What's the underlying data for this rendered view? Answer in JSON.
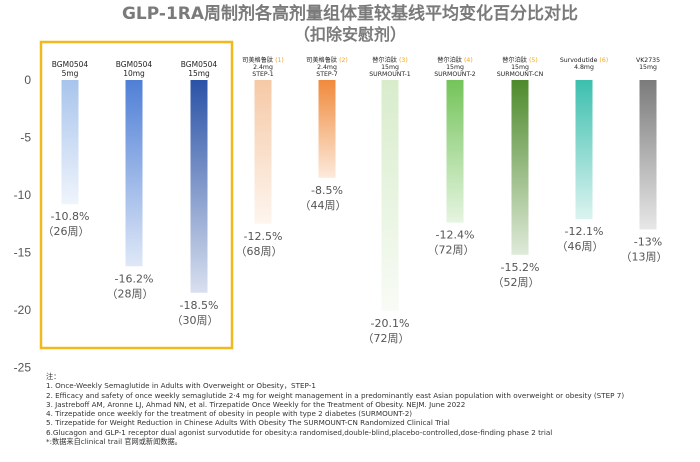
{
  "chart_data": {
    "type": "bar",
    "title": "GLP-1RA周制剂各高剂量组体重较基线平均变化百分比对比",
    "subtitle": "（扣除安慰剂）",
    "ylim": [
      -25,
      0
    ],
    "yticks": [
      0,
      -5,
      -10,
      -15,
      -20,
      -25
    ],
    "grid": false,
    "series": [
      {
        "drug": "BGM0504",
        "dose": "5mg",
        "trial": "",
        "value": -10.8,
        "label": "-10.8%",
        "weeks": "（26周）",
        "note": "",
        "color": "#a8c4ec",
        "highlight": true
      },
      {
        "drug": "BGM0504",
        "dose": "10mg",
        "trial": "",
        "value": -16.2,
        "label": "-16.2%",
        "weeks": "（28周）",
        "note": "",
        "color": "#4f7fd6",
        "highlight": true
      },
      {
        "drug": "BGM0504",
        "dose": "15mg",
        "trial": "",
        "value": -18.5,
        "label": "-18.5%",
        "weeks": "（30周）",
        "note": "",
        "color": "#2a52a6",
        "highlight": true
      },
      {
        "drug": "司美格鲁肽",
        "dose": "2.4mg",
        "trial": "STEP-1",
        "value": -12.5,
        "label": "-12.5%",
        "weeks": "（68周）",
        "note": "(1)",
        "color": "#f6c9a6",
        "highlight": false
      },
      {
        "drug": "司美格鲁肽",
        "dose": "2.4mg",
        "trial": "STEP-7",
        "value": -8.5,
        "label": "-8.5%",
        "weeks": "（44周）",
        "note": "(2)",
        "color": "#f08a3c",
        "highlight": false
      },
      {
        "drug": "替尔泊肽",
        "dose": "15mg",
        "trial": "SURMOUNT-1",
        "value": -20.1,
        "label": "-20.1%",
        "weeks": "（72周）",
        "note": "(3)",
        "color": "#d8eccb",
        "highlight": false
      },
      {
        "drug": "替尔泊肽",
        "dose": "15mg",
        "trial": "SURMOUNT-2",
        "value": -12.4,
        "label": "-12.4%",
        "weeks": "（72周）",
        "note": "(4)",
        "color": "#74c45a",
        "highlight": false
      },
      {
        "drug": "替尔泊肽",
        "dose": "15mg",
        "trial": "SURMOUNT-CN",
        "value": -15.2,
        "label": "-15.2%",
        "weeks": "（52周）",
        "note": "(5)",
        "color": "#4e8a2c",
        "highlight": false
      },
      {
        "drug": "Survodutide",
        "dose": "4.8mg",
        "trial": "",
        "value": -12.1,
        "label": "-12.1%",
        "weeks": "（46周）",
        "note": "(6)",
        "color": "#3cbfae",
        "highlight": false
      },
      {
        "drug": "VK2735",
        "dose": "15mg",
        "trial": "",
        "value": -13,
        "label": "-13%",
        "weeks": "（13周）",
        "note": "",
        "color": "#7b7b7b",
        "highlight": false
      }
    ]
  },
  "notes": [
    "注：",
    "1. Once-Weekly Semaglutide in Adults with Overweight or Obesity，STEP-1",
    "2. Efficacy and safety of once weekly semaglutide 2·4 mg for weight management in a predominantly east Asian population with overweight or obesity (STEP 7)",
    "3. Jastreboff AM, Aronne LJ, Ahmad NN, et al. Tirzepatide Once Weekly for the Treatment of Obesity. NEJM. June 2022",
    "4. Tirzepatide once weekly for the treatment of obesity in people with type 2 diabetes (SURMOUNT-2)",
    "5. Tirzepatide for Weight Reduction in Chinese Adults With Obesity The SURMOUNT-CN Randomized Clinical Trial",
    "6.Glucagon and GLP-1 receptor dual agonist survodutide for obesity:a randomised,double-blind,placebo-controlled,dose-finding phase 2 trial",
    "*:数据来自clinical trail 官网或新闻数据。"
  ],
  "colors": {
    "highlight_border": "#f2b81f",
    "note_text": "#f2a81e",
    "axis_label": "#555555",
    "value_text": "#555555"
  }
}
